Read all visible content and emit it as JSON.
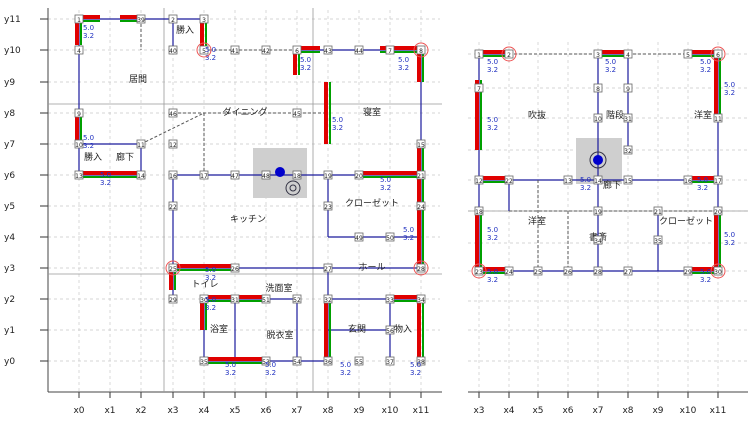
{
  "floor1": {
    "y_axis": [
      "y11",
      "y10",
      "y9",
      "y8",
      "y7",
      "y6",
      "y5",
      "y4",
      "y3",
      "y2",
      "y1",
      "y0"
    ],
    "x_axis": [
      "x0",
      "x1",
      "x2",
      "x3",
      "x4",
      "x5",
      "x6",
      "x7",
      "x8",
      "x9",
      "x10",
      "x11"
    ],
    "rooms": [
      {
        "key": "living",
        "label": "居間"
      },
      {
        "key": "dining",
        "label": "ダイニング"
      },
      {
        "key": "bedroom",
        "label": "寝室"
      },
      {
        "key": "entry",
        "label": "勝入"
      },
      {
        "key": "hall_f1",
        "label": "廊下"
      },
      {
        "key": "kitchen",
        "label": "キッチン"
      },
      {
        "key": "closet_f1",
        "label": "クローゼット"
      },
      {
        "key": "hall2",
        "label": "ホール"
      },
      {
        "key": "toilet",
        "label": "トイレ"
      },
      {
        "key": "washroom",
        "label": "洗面室"
      },
      {
        "key": "bath",
        "label": "浴室"
      },
      {
        "key": "dressing",
        "label": "脱衣室"
      },
      {
        "key": "genkan",
        "label": "玄関"
      },
      {
        "key": "storage",
        "label": "物入"
      },
      {
        "key": "ww",
        "label": "勝入"
      }
    ],
    "node_ids": [
      "1",
      "2",
      "3",
      "4",
      "5",
      "6",
      "7",
      "8",
      "9",
      "10",
      "11",
      "12",
      "13",
      "14",
      "15",
      "16",
      "17",
      "18",
      "19",
      "20",
      "21",
      "22",
      "23",
      "24",
      "25",
      "26",
      "27",
      "28",
      "29",
      "30",
      "31",
      "32",
      "33",
      "34",
      "35",
      "36",
      "37",
      "38",
      "39",
      "40",
      "41",
      "42",
      "43",
      "44",
      "45",
      "46",
      "47",
      "48",
      "49",
      "50",
      "51",
      "52",
      "53",
      "54",
      "55",
      "56"
    ],
    "dims": {
      "d1": "3.2",
      "d2": "5.0"
    }
  },
  "floor2": {
    "x_axis": [
      "x3",
      "x4",
      "x5",
      "x6",
      "x7",
      "x8",
      "x9",
      "x10",
      "x11"
    ],
    "rooms": [
      {
        "key": "atrium",
        "label": "吹抜"
      },
      {
        "key": "stairs",
        "label": "階段"
      },
      {
        "key": "western_a",
        "label": "洋室"
      },
      {
        "key": "hall_f2",
        "label": "廊下"
      },
      {
        "key": "western_b",
        "label": "洋室"
      },
      {
        "key": "study",
        "label": "書斎"
      },
      {
        "key": "closet_f2",
        "label": "クローゼット"
      }
    ],
    "node_ids": [
      "1",
      "2",
      "3",
      "4",
      "5",
      "6",
      "7",
      "8",
      "9",
      "10",
      "11",
      "12",
      "13",
      "14",
      "15",
      "16",
      "17",
      "18",
      "19",
      "20",
      "21",
      "22",
      "23",
      "24",
      "25",
      "26",
      "27",
      "28",
      "29",
      "30",
      "31",
      "32",
      "33",
      "34",
      "35"
    ],
    "dims": {
      "d1": "3.2",
      "d2": "5.0"
    }
  },
  "colors": {
    "wall_red": "#e00000",
    "wall_green": "#00a000",
    "beam_blue": "#1a1a9c",
    "node_gray": "#666666",
    "grid": "#c8c8c8"
  }
}
